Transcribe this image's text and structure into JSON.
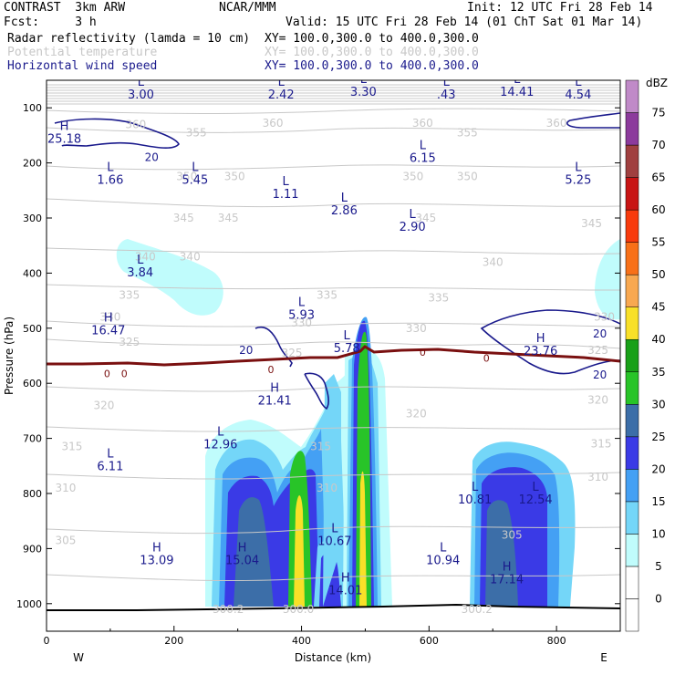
{
  "header": {
    "model": "CONTRAST  3km ARW",
    "org": "NCAR/MMM",
    "init": "Init: 12 UTC Fri 28 Feb 14",
    "fcst": "Fcst:     3 h",
    "valid": "Valid: 15 UTC Fri 28 Feb 14 (01 ChT Sat 01 Mar 14)",
    "fields": [
      {
        "name": "Radar reflectivity (lamda = 10 cm)",
        "xy": "XY= 100.0,300.0 to 400.0,300.0"
      },
      {
        "name": "Potential temperature",
        "xy": "XY= 100.0,300.0 to 400.0,300.0"
      },
      {
        "name": "Horizontal wind speed",
        "xy": "XY= 100.0,300.0 to 400.0,300.0"
      }
    ]
  },
  "colors": {
    "potential_temperature": "#c8c8c8",
    "wind_speed": "#1a1a8c",
    "zero_contour": "#7a1010",
    "terrain": "#000000"
  },
  "chart_data": {
    "type": "heatmap",
    "title": "Radar reflectivity (lamda = 10 cm)",
    "xlabel": "Distance (km)",
    "ylabel": "Pressure (hPa)",
    "xlim": [
      0,
      900
    ],
    "ylim": [
      1050,
      50
    ],
    "x_ticks": [
      0,
      200,
      400,
      600,
      800
    ],
    "y_ticks": [
      100,
      200,
      300,
      400,
      500,
      600,
      700,
      800,
      900,
      1000
    ],
    "x_end_labels": {
      "left": "W",
      "right": "E"
    },
    "colorbar": {
      "unit": "dBZ",
      "levels": [
        0,
        5,
        10,
        15,
        20,
        25,
        30,
        35,
        40,
        45,
        50,
        55,
        60,
        65,
        70,
        75
      ],
      "colors": [
        "#ffffff",
        "#c0fcfc",
        "#74d6f8",
        "#44a0f4",
        "#3a3ae6",
        "#3c6ea8",
        "#28c428",
        "#18a018",
        "#f8e028",
        "#f8a850",
        "#f87018",
        "#f83a0c",
        "#c81414",
        "#a04040",
        "#8c3a9c",
        "#c08ac8"
      ]
    },
    "theta_contour_labels": [
      {
        "x": 140,
        "p": 130,
        "value": "360"
      },
      {
        "x": 235,
        "p": 145,
        "value": "355"
      },
      {
        "x": 355,
        "p": 128,
        "value": "360"
      },
      {
        "x": 590,
        "p": 128,
        "value": "360"
      },
      {
        "x": 660,
        "p": 145,
        "value": "355"
      },
      {
        "x": 800,
        "p": 128,
        "value": "360"
      },
      {
        "x": 220,
        "p": 225,
        "value": "350"
      },
      {
        "x": 295,
        "p": 225,
        "value": "350"
      },
      {
        "x": 660,
        "p": 225,
        "value": "350"
      },
      {
        "x": 575,
        "p": 225,
        "value": "350"
      },
      {
        "x": 215,
        "p": 300,
        "value": "345"
      },
      {
        "x": 285,
        "p": 300,
        "value": "345"
      },
      {
        "x": 595,
        "p": 300,
        "value": "345"
      },
      {
        "x": 855,
        "p": 310,
        "value": "345"
      },
      {
        "x": 225,
        "p": 370,
        "value": "340"
      },
      {
        "x": 155,
        "p": 370,
        "value": "340"
      },
      {
        "x": 700,
        "p": 380,
        "value": "340"
      },
      {
        "x": 130,
        "p": 440,
        "value": "335"
      },
      {
        "x": 440,
        "p": 440,
        "value": "335"
      },
      {
        "x": 615,
        "p": 445,
        "value": "335"
      },
      {
        "x": 875,
        "p": 480,
        "value": "330"
      },
      {
        "x": 100,
        "p": 480,
        "value": "330"
      },
      {
        "x": 400,
        "p": 490,
        "value": "330"
      },
      {
        "x": 580,
        "p": 500,
        "value": "330"
      },
      {
        "x": 130,
        "p": 525,
        "value": "325"
      },
      {
        "x": 385,
        "p": 545,
        "value": "325"
      },
      {
        "x": 865,
        "p": 540,
        "value": "325"
      },
      {
        "x": 90,
        "p": 640,
        "value": "320"
      },
      {
        "x": 580,
        "p": 655,
        "value": "320"
      },
      {
        "x": 865,
        "p": 630,
        "value": "320"
      },
      {
        "x": 40,
        "p": 715,
        "value": "315"
      },
      {
        "x": 430,
        "p": 715,
        "value": "315"
      },
      {
        "x": 870,
        "p": 710,
        "value": "315"
      },
      {
        "x": 30,
        "p": 790,
        "value": "310"
      },
      {
        "x": 440,
        "p": 790,
        "value": "310"
      },
      {
        "x": 865,
        "p": 770,
        "value": "310"
      },
      {
        "x": 30,
        "p": 885,
        "value": "305"
      },
      {
        "x": 730,
        "p": 875,
        "value": "305"
      },
      {
        "x": 285,
        "p": 1010,
        "value": "300.2"
      },
      {
        "x": 395,
        "p": 1010,
        "value": "300.0"
      },
      {
        "x": 675,
        "p": 1010,
        "value": "300.2"
      }
    ],
    "wind_contour_labels": [
      {
        "x": 165,
        "p": 190,
        "value": "20"
      },
      {
        "x": 313,
        "p": 540,
        "value": "20"
      },
      {
        "x": 868,
        "p": 510,
        "value": "20"
      },
      {
        "x": 868,
        "p": 585,
        "value": "20"
      }
    ],
    "zero_contour_labels": [
      {
        "x": 95,
        "p": 582,
        "value": "0"
      },
      {
        "x": 122,
        "p": 582,
        "value": "0"
      },
      {
        "x": 352,
        "p": 575,
        "value": "0"
      },
      {
        "x": 590,
        "p": 543,
        "value": "0"
      },
      {
        "x": 690,
        "p": 554,
        "value": "0"
      }
    ],
    "extrema": [
      {
        "type": "L",
        "x": 148,
        "p": 60,
        "value": "3.00"
      },
      {
        "type": "L",
        "x": 368,
        "p": 60,
        "value": "2.42"
      },
      {
        "type": "L",
        "x": 497,
        "p": 55,
        "value": "3.30"
      },
      {
        "type": "L",
        "x": 627,
        "p": 60,
        "value": ".43"
      },
      {
        "type": "L",
        "x": 738,
        "p": 55,
        "value": "14.41"
      },
      {
        "type": "L",
        "x": 834,
        "p": 60,
        "value": "4.54"
      },
      {
        "type": "H",
        "x": 28,
        "p": 140,
        "value": "25.18"
      },
      {
        "type": "L",
        "x": 590,
        "p": 175,
        "value": "6.15"
      },
      {
        "type": "L",
        "x": 100,
        "p": 215,
        "value": "1.66"
      },
      {
        "type": "L",
        "x": 233,
        "p": 215,
        "value": "5.45"
      },
      {
        "type": "L",
        "x": 375,
        "p": 240,
        "value": "1.11"
      },
      {
        "type": "L",
        "x": 467,
        "p": 270,
        "value": "2.86"
      },
      {
        "type": "L",
        "x": 574,
        "p": 300,
        "value": "2.90"
      },
      {
        "type": "L",
        "x": 834,
        "p": 215,
        "value": "5.25"
      },
      {
        "type": "L",
        "x": 147,
        "p": 383,
        "value": "3.84"
      },
      {
        "type": "L",
        "x": 400,
        "p": 460,
        "value": "5.93"
      },
      {
        "type": "H",
        "x": 97,
        "p": 488,
        "value": "16.47"
      },
      {
        "type": "L",
        "x": 471,
        "p": 520,
        "value": "5.78"
      },
      {
        "type": "H",
        "x": 775,
        "p": 525,
        "value": "23.76"
      },
      {
        "type": "H",
        "x": 358,
        "p": 615,
        "value": "21.41"
      },
      {
        "type": "L",
        "x": 273,
        "p": 695,
        "value": "12.96"
      },
      {
        "type": "L",
        "x": 100,
        "p": 735,
        "value": "6.11"
      },
      {
        "type": "L",
        "x": 672,
        "p": 795,
        "value": "10.81"
      },
      {
        "type": "L",
        "x": 767,
        "p": 795,
        "value": "12.54"
      },
      {
        "type": "L",
        "x": 452,
        "p": 870,
        "value": "10.67"
      },
      {
        "type": "H",
        "x": 173,
        "p": 905,
        "value": "13.09"
      },
      {
        "type": "H",
        "x": 307,
        "p": 905,
        "value": "15.04"
      },
      {
        "type": "L",
        "x": 622,
        "p": 905,
        "value": "10.94"
      },
      {
        "type": "H",
        "x": 722,
        "p": 940,
        "value": "17.14"
      },
      {
        "type": "H",
        "x": 469,
        "p": 960,
        "value": "14.01"
      }
    ]
  }
}
